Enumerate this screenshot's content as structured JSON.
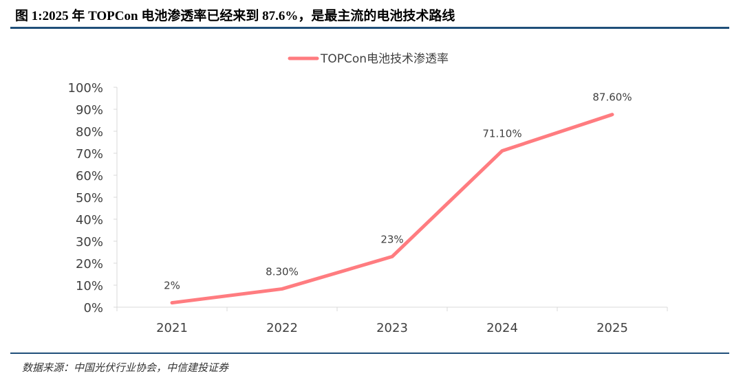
{
  "title": "图 1:2025 年 TOPCon 电池渗透率已经来到 87.6%，是最主流的电池技术路线",
  "source": "数据来源：中国光伏行业协会，中信建投证券",
  "chart_data": {
    "type": "line",
    "categories": [
      "2021",
      "2022",
      "2023",
      "2024",
      "2025"
    ],
    "series": [
      {
        "name": "TOPCon电池技术渗透率",
        "values": [
          2,
          8.3,
          23,
          71.1,
          87.6
        ],
        "labels": [
          "2%",
          "8.30%",
          "23%",
          "71.10%",
          "87.60%"
        ],
        "color": "#ff7c80"
      }
    ],
    "yticks": [
      "0%",
      "10%",
      "20%",
      "30%",
      "40%",
      "50%",
      "60%",
      "70%",
      "80%",
      "90%",
      "100%"
    ],
    "ylim": [
      0,
      100
    ],
    "legend": "top-center",
    "grid": false
  }
}
